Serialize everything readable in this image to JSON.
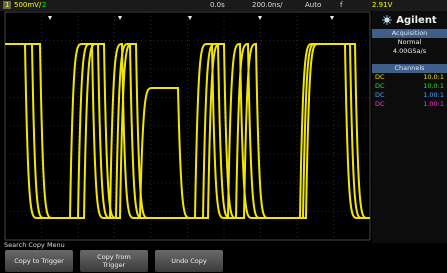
{
  "top_bar": {
    "channel1": "1",
    "scale1": "500mV/",
    "channel2": "2",
    "time_offset": "0.0s",
    "time_scale": "200.0ns/",
    "trigger_mode": "Auto",
    "trigger_label": "f",
    "trigger_level": "2.91V"
  },
  "side_panel": {
    "brand": "Agilent",
    "acquisition": {
      "title": "Acquisition",
      "mode": "Normal",
      "rate": "4.00GSa/s"
    },
    "channels": {
      "title": "Channels",
      "rows": [
        {
          "coupling": "DC",
          "probe": "10.0:1"
        },
        {
          "coupling": "DC",
          "probe": "10.0:1"
        },
        {
          "coupling": "DC",
          "probe": "1.00:1"
        },
        {
          "coupling": "DC",
          "probe": "1.00:1"
        }
      ]
    }
  },
  "menu": {
    "title": "Search Copy Menu",
    "buttons": [
      "Copy to Trigger",
      "Copy from Trigger",
      "Undo Copy"
    ]
  }
}
